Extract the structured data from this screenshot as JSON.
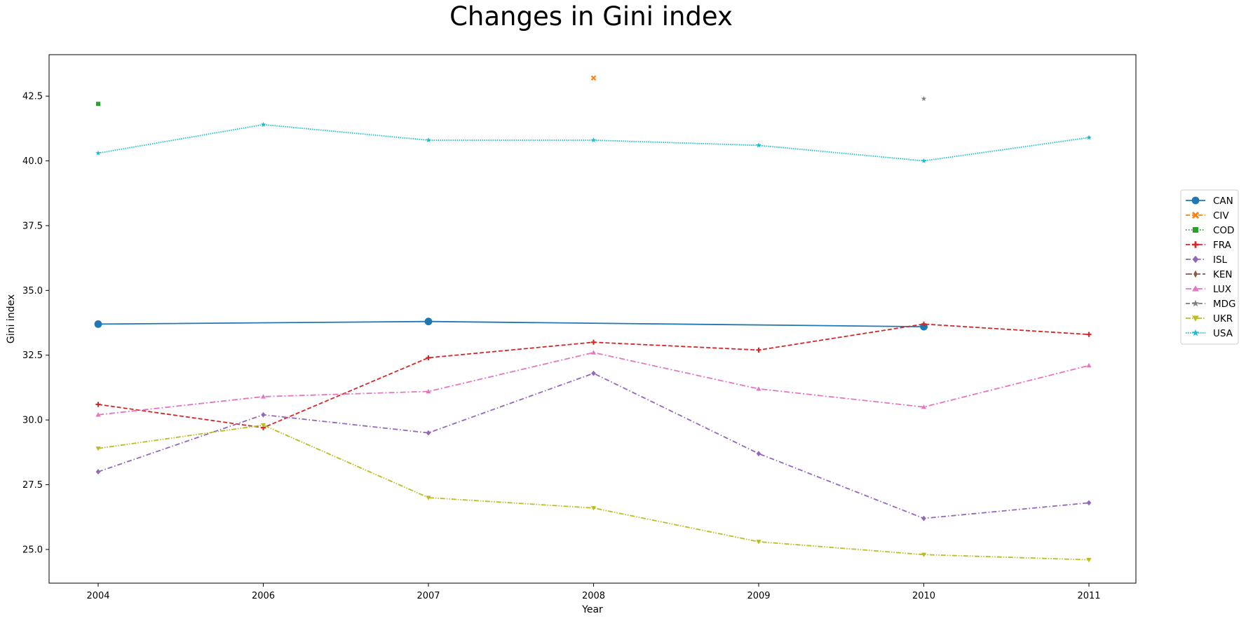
{
  "chart_data": {
    "type": "line",
    "title": "Changes in Gini index",
    "xlabel": "Year",
    "ylabel": "Gini index",
    "categories": [
      "2004",
      "2006",
      "2007",
      "2008",
      "2009",
      "2010",
      "2011"
    ],
    "ylim": [
      23.7,
      44.1
    ],
    "yticks": [
      25.0,
      27.5,
      30.0,
      32.5,
      35.0,
      37.5,
      40.0,
      42.5
    ],
    "ytick_labels": [
      "25.0",
      "27.5",
      "30.0",
      "32.5",
      "35.0",
      "37.5",
      "40.0",
      "42.5"
    ],
    "grid": false,
    "legend_position": "right",
    "series": [
      {
        "name": "CAN",
        "color": "#1f77b4",
        "dash": "solid",
        "marker": "circle",
        "values": [
          33.7,
          null,
          33.8,
          null,
          null,
          33.6,
          null
        ]
      },
      {
        "name": "CIV",
        "color": "#ff7f0e",
        "dash": "dashed",
        "marker": "x",
        "values": [
          null,
          null,
          null,
          43.2,
          null,
          null,
          null
        ]
      },
      {
        "name": "COD",
        "color": "#2ca02c",
        "dash": "dotted",
        "marker": "square",
        "values": [
          42.2,
          null,
          null,
          null,
          null,
          null,
          null
        ]
      },
      {
        "name": "FRA",
        "color": "#d62728",
        "dash": "dashed",
        "marker": "plus",
        "values": [
          30.6,
          29.7,
          32.4,
          33.0,
          32.7,
          33.7,
          33.3
        ]
      },
      {
        "name": "ISL",
        "color": "#9467bd",
        "dash": "dashdot",
        "marker": "diamond",
        "values": [
          28.0,
          30.2,
          29.5,
          31.8,
          28.7,
          26.2,
          26.8
        ]
      },
      {
        "name": "KEN",
        "color": "#8c564b",
        "dash": "longdash",
        "marker": "thin-diamond",
        "values": [
          null,
          null,
          null,
          null,
          null,
          null,
          null
        ]
      },
      {
        "name": "LUX",
        "color": "#e377c2",
        "dash": "dashdot2",
        "marker": "triangle-up",
        "values": [
          30.2,
          30.9,
          31.1,
          32.6,
          31.2,
          30.5,
          32.1
        ]
      },
      {
        "name": "MDG",
        "color": "#7f7f7f",
        "dash": "dashed",
        "marker": "star",
        "values": [
          null,
          null,
          null,
          null,
          null,
          42.4,
          null
        ]
      },
      {
        "name": "UKR",
        "color": "#bcbd22",
        "dash": "dashdotdot",
        "marker": "triangle-down",
        "values": [
          28.9,
          29.8,
          27.0,
          26.6,
          25.3,
          24.8,
          24.6
        ]
      },
      {
        "name": "USA",
        "color": "#17becf",
        "dash": "densedot",
        "marker": "star",
        "values": [
          40.3,
          41.4,
          40.8,
          40.8,
          40.6,
          40.0,
          40.9
        ]
      }
    ]
  }
}
